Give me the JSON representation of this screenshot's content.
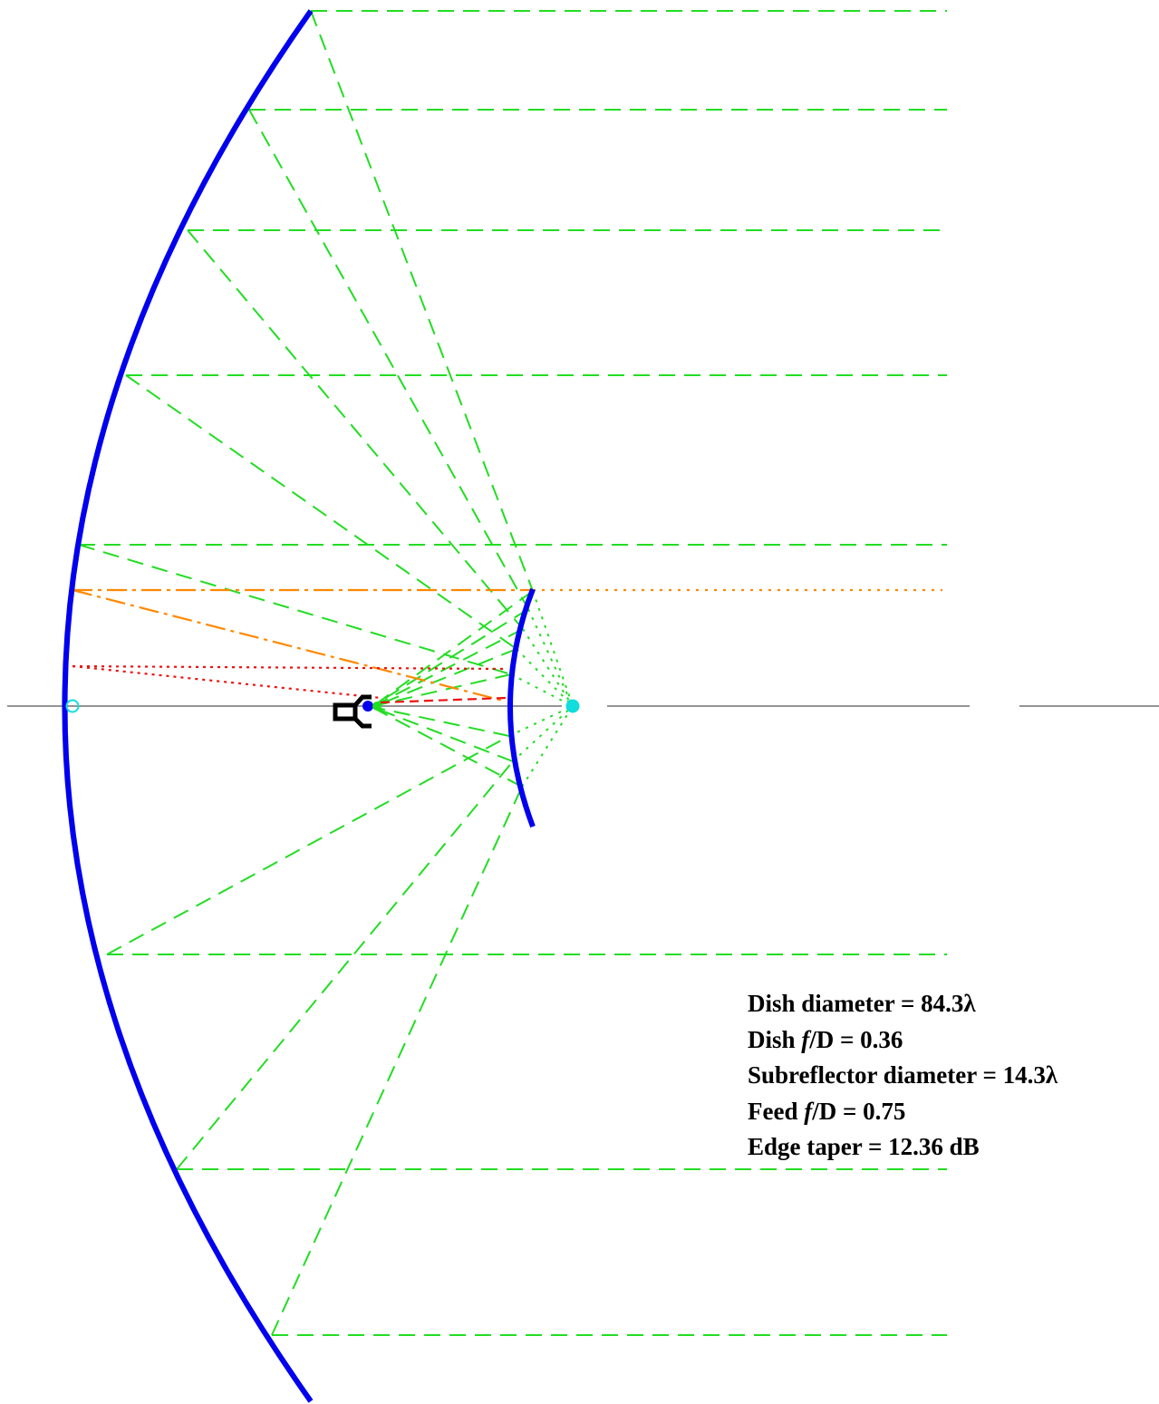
{
  "parameters": {
    "dish_diameter": {
      "label": "Dish diameter = ",
      "value": "84.3",
      "unit": "λ"
    },
    "dish_fd": {
      "label_pre": "Dish ",
      "label_italic": "f",
      "label_post": "/D = ",
      "value": "0.36"
    },
    "subreflector_diameter": {
      "label": "Subreflector diameter = ",
      "value": "14.3",
      "unit": "λ"
    },
    "feed_fd": {
      "label_pre": "Feed ",
      "label_italic": "f",
      "label_post": "/D = ",
      "value": "0.75"
    },
    "edge_taper": {
      "label": "Edge taper = ",
      "value": "12.36",
      "unit": " dB"
    }
  },
  "colors": {
    "reflector": "#0000ee",
    "ray": "#22dd22",
    "edge_ray": "#ff8800",
    "blocked_ray": "#ee1111",
    "focus_marker": "#11dddd",
    "axis": "#555555",
    "feed": "#000000"
  }
}
